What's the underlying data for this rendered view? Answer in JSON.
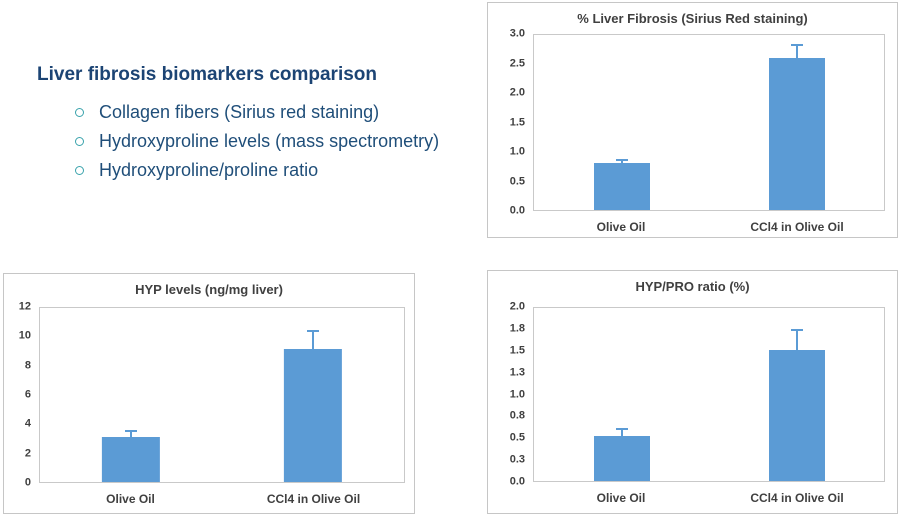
{
  "intro": {
    "title": "Liver fibrosis biomarkers comparison",
    "bullets": [
      "Collagen fibers (Sirius red staining)",
      "Hydroxyproline levels (mass spectrometry)",
      "Hydroxyproline/proline ratio"
    ],
    "title_color": "#1c4474",
    "bullet_text_color": "#1f4e79",
    "bullet_marker_color": "#3aa3ac"
  },
  "chart_data": [
    {
      "type": "bar",
      "title": "% Liver Fibrosis (Sirius Red staining)",
      "categories": [
        "Olive Oil",
        "CCl4 in Olive Oil"
      ],
      "values": [
        0.8,
        2.6
      ],
      "errors": [
        0.06,
        0.23
      ],
      "ylim": [
        0,
        3
      ],
      "ytick_values": [
        0,
        0.5,
        1,
        1.5,
        2,
        2.5,
        3
      ],
      "ytick_labels": [
        "0.0",
        "0.5",
        "1.0",
        "1.5",
        "2.0",
        "2.5",
        "3.0"
      ],
      "xlabel": "",
      "ylabel": "",
      "grid": false,
      "legend": "none",
      "bar_color": "#5b9bd5",
      "error_bar_color": "#5b9bd5"
    },
    {
      "type": "bar",
      "title": "HYP levels (ng/mg liver)",
      "categories": [
        "Olive Oil",
        "CCl4 in Olive Oil"
      ],
      "values": [
        3.1,
        9.2
      ],
      "errors": [
        0.4,
        1.2
      ],
      "ylim": [
        0,
        12
      ],
      "ytick_values": [
        0,
        2,
        4,
        6,
        8,
        10,
        12
      ],
      "ytick_labels": [
        "0",
        "2",
        "4",
        "6",
        "8",
        "10",
        "12"
      ],
      "xlabel": "",
      "ylabel": "",
      "grid": false,
      "legend": "none",
      "bar_color": "#5b9bd5",
      "error_bar_color": "#5b9bd5"
    },
    {
      "type": "bar",
      "title": "HYP/PRO ratio (%)",
      "categories": [
        "Olive Oil",
        "CCl4 in Olive Oil"
      ],
      "values": [
        0.52,
        1.51
      ],
      "errors": [
        0.08,
        0.24
      ],
      "ylim": [
        0,
        2
      ],
      "ytick_values": [
        0,
        0.25,
        0.5,
        0.75,
        1,
        1.25,
        1.5,
        1.75,
        2
      ],
      "ytick_labels": [
        "0.0",
        "0.3",
        "0.5",
        "0.8",
        "1.0",
        "1.3",
        "1.5",
        "1.8",
        "2.0"
      ],
      "xlabel": "",
      "ylabel": "",
      "grid": false,
      "legend": "none",
      "bar_color": "#5b9bd5",
      "error_bar_color": "#5b9bd5"
    }
  ]
}
